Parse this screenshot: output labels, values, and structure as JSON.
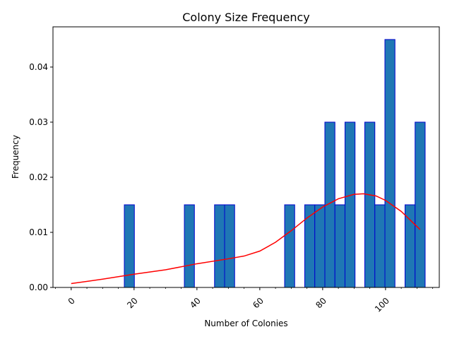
{
  "chart_data": {
    "type": "bar",
    "title": "Colony Size Frequency",
    "xlabel": "Number of Colonies",
    "ylabel": "Frequency",
    "xlim": [
      -5.8,
      117.1
    ],
    "ylim": [
      0,
      0.0473
    ],
    "bin_width": 3.2,
    "bar_fill": "#1f77b4",
    "bar_edge": "#0000cd",
    "curve_color": "#ff0000",
    "xticks": [
      {
        "value": 0,
        "label": "0"
      },
      {
        "value": 20,
        "label": "20"
      },
      {
        "value": 40,
        "label": "40"
      },
      {
        "value": 60,
        "label": "60"
      },
      {
        "value": 80,
        "label": "80"
      },
      {
        "value": 100,
        "label": "100"
      }
    ],
    "yticks": [
      {
        "value": 0,
        "label": "0.00"
      },
      {
        "value": 0.01,
        "label": "0.01"
      },
      {
        "value": 0.02,
        "label": "0.02"
      },
      {
        "value": 0.03,
        "label": "0.03"
      },
      {
        "value": 0.04,
        "label": "0.04"
      }
    ],
    "bars": [
      {
        "x": 16.9,
        "value": 0.015
      },
      {
        "x": 36.0,
        "value": 0.015
      },
      {
        "x": 45.6,
        "value": 0.015
      },
      {
        "x": 48.8,
        "value": 0.015
      },
      {
        "x": 67.9,
        "value": 0.015
      },
      {
        "x": 74.3,
        "value": 0.015
      },
      {
        "x": 77.5,
        "value": 0.015
      },
      {
        "x": 80.7,
        "value": 0.03
      },
      {
        "x": 83.9,
        "value": 0.015
      },
      {
        "x": 87.1,
        "value": 0.03
      },
      {
        "x": 93.4,
        "value": 0.03
      },
      {
        "x": 96.6,
        "value": 0.015
      },
      {
        "x": 99.8,
        "value": 0.045
      },
      {
        "x": 106.2,
        "value": 0.015
      },
      {
        "x": 109.4,
        "value": 0.03
      }
    ],
    "density_curve": [
      {
        "x": 0,
        "y": 0.0007
      },
      {
        "x": 10,
        "y": 0.0015
      },
      {
        "x": 20,
        "y": 0.0024
      },
      {
        "x": 30,
        "y": 0.0032
      },
      {
        "x": 40,
        "y": 0.0043
      },
      {
        "x": 50,
        "y": 0.0052
      },
      {
        "x": 55,
        "y": 0.0057
      },
      {
        "x": 60,
        "y": 0.0066
      },
      {
        "x": 65,
        "y": 0.0082
      },
      {
        "x": 70,
        "y": 0.0103
      },
      {
        "x": 75,
        "y": 0.0126
      },
      {
        "x": 80,
        "y": 0.0146
      },
      {
        "x": 85,
        "y": 0.0161
      },
      {
        "x": 90,
        "y": 0.0169
      },
      {
        "x": 93,
        "y": 0.017
      },
      {
        "x": 97,
        "y": 0.0166
      },
      {
        "x": 100,
        "y": 0.0158
      },
      {
        "x": 105,
        "y": 0.0138
      },
      {
        "x": 111,
        "y": 0.0105
      }
    ]
  }
}
